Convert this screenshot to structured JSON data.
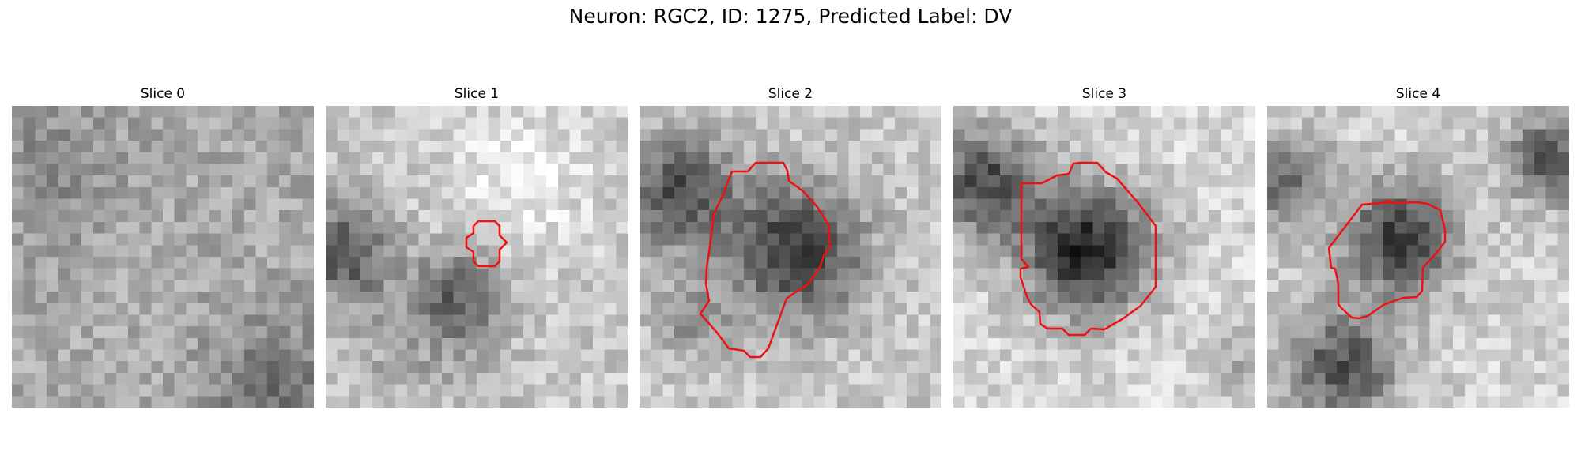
{
  "figure": {
    "title": "Neuron: RGC2, ID: 1275, Predicted Label: DV"
  },
  "outline_color": "#ee1111",
  "panels": [
    {
      "title": "Slice 0",
      "has_contour": false
    },
    {
      "title": "Slice 1",
      "has_contour": true
    },
    {
      "title": "Slice 2",
      "has_contour": true
    },
    {
      "title": "Slice 3",
      "has_contour": true
    },
    {
      "title": "Slice 4",
      "has_contour": true
    }
  ]
}
